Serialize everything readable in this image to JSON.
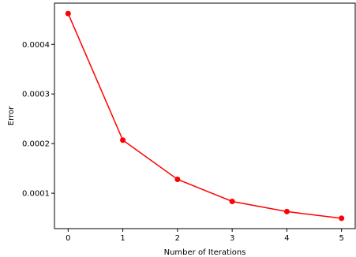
{
  "chart_data": {
    "type": "line",
    "title": "",
    "xlabel": "Number of Iterations",
    "ylabel": "Error",
    "x": [
      0,
      1,
      2,
      3,
      4,
      5
    ],
    "series": [
      {
        "values": [
          0.000462,
          0.000207,
          0.000128,
          8.35e-05,
          6.3e-05,
          4.95e-05
        ],
        "color": "#ff0000",
        "marker": "circle"
      }
    ],
    "xlim": [
      -0.25,
      5.25
    ],
    "ylim": [
      2.87e-05,
      0.000483
    ],
    "xticks": [
      {
        "value": 0,
        "label": "0"
      },
      {
        "value": 1,
        "label": "1"
      },
      {
        "value": 2,
        "label": "2"
      },
      {
        "value": 3,
        "label": "3"
      },
      {
        "value": 4,
        "label": "4"
      },
      {
        "value": 5,
        "label": "5"
      }
    ],
    "yticks": [
      {
        "value": 0.0001,
        "label": "0.0001"
      },
      {
        "value": 0.0002,
        "label": "0.0002"
      },
      {
        "value": 0.0003,
        "label": "0.0003"
      },
      {
        "value": 0.0004,
        "label": "0.0004"
      }
    ],
    "grid": false,
    "legend": "none"
  }
}
